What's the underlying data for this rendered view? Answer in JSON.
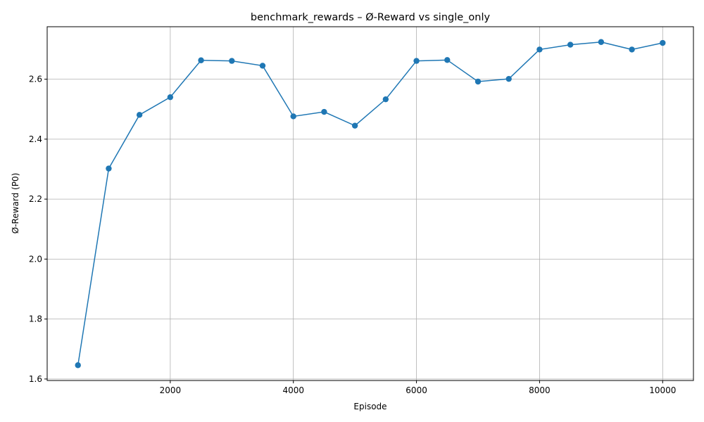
{
  "chart_data": {
    "type": "line",
    "title": "benchmark_rewards – Ø-Reward vs single_only",
    "xlabel": "Episode",
    "ylabel": "Ø-Reward (P0)",
    "xlim": [
      0,
      10500
    ],
    "ylim": [
      1.595,
      2.775
    ],
    "xticks": [
      2000,
      4000,
      6000,
      8000,
      10000
    ],
    "yticks": [
      1.6,
      1.8,
      2.0,
      2.2,
      2.4,
      2.6
    ],
    "grid": true,
    "marker": "circle",
    "series": [
      {
        "color": "#1f77b4",
        "x": [
          500,
          1000,
          1500,
          2000,
          2500,
          3000,
          3500,
          4000,
          4500,
          5000,
          5500,
          6000,
          6500,
          7000,
          7500,
          8000,
          8500,
          9000,
          9500,
          10000
        ],
        "y": [
          1.646,
          2.302,
          2.481,
          2.54,
          2.663,
          2.661,
          2.645,
          2.476,
          2.491,
          2.445,
          2.533,
          2.661,
          2.664,
          2.592,
          2.601,
          2.699,
          2.715,
          2.724,
          2.699,
          2.721
        ]
      }
    ]
  }
}
